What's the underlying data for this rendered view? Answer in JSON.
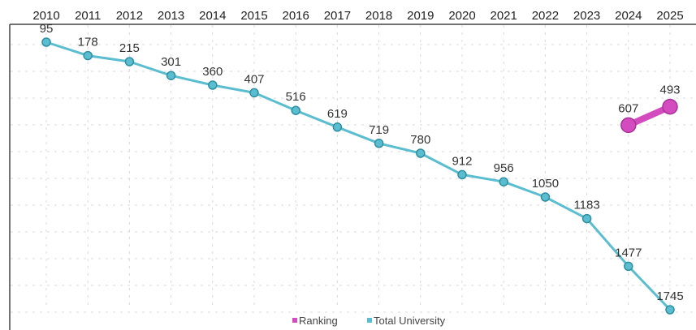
{
  "chart_data": {
    "type": "line",
    "x": [
      "2010",
      "2011",
      "2012",
      "2013",
      "2014",
      "2015",
      "2016",
      "2017",
      "2018",
      "2019",
      "2020",
      "2021",
      "2022",
      "2023",
      "2024",
      "2025"
    ],
    "y_reversed": true,
    "x_axis_position": "top",
    "ylim": [
      0,
      1850
    ],
    "grid": true,
    "legend_position": "bottom-center",
    "series": [
      {
        "name": "Ranking",
        "color": "#d44bbf",
        "x": [
          "2024",
          "2025"
        ],
        "values": [
          607,
          493
        ],
        "labels": [
          "607",
          "493"
        ]
      },
      {
        "name": "Total University",
        "color": "#5bbdd0",
        "x": [
          "2010",
          "2011",
          "2012",
          "2013",
          "2014",
          "2015",
          "2016",
          "2017",
          "2018",
          "2019",
          "2020",
          "2021",
          "2022",
          "2023",
          "2024",
          "2025"
        ],
        "values": [
          95,
          178,
          215,
          301,
          360,
          407,
          516,
          619,
          719,
          780,
          912,
          956,
          1050,
          1183,
          1477,
          1745
        ],
        "labels": [
          "95",
          "178",
          "215",
          "301",
          "360",
          "407",
          "516",
          "619",
          "719",
          "780",
          "912",
          "956",
          "1050",
          "1183",
          "1477",
          "1745"
        ]
      }
    ]
  }
}
